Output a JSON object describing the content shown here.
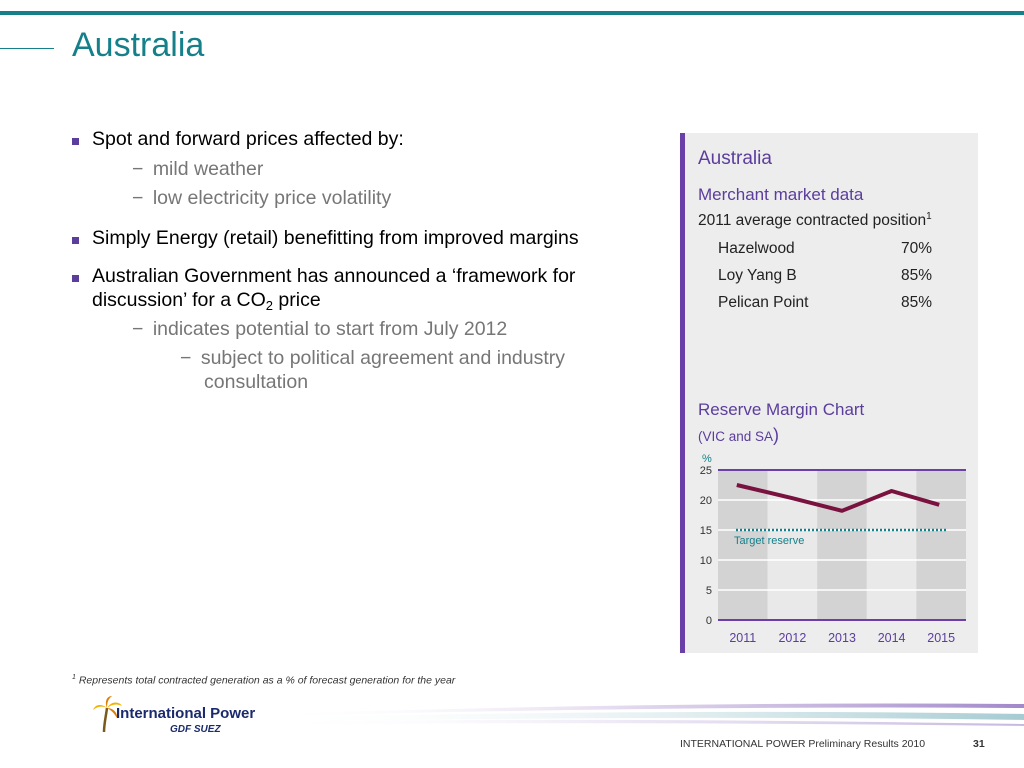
{
  "slide": {
    "title": "Australia"
  },
  "bullets": [
    {
      "text": "Spot and forward prices affected by:",
      "subs": [
        "mild weather",
        "low electricity price volatility"
      ]
    },
    {
      "text": "Simply Energy (retail) benefitting from improved margins"
    },
    {
      "text_a": "Australian Government has announced a ‘framework for",
      "text_b": "discussion’ for a CO",
      "text_sub": "2",
      "text_c": " price",
      "sub": "indicates potential to start from July 2012",
      "subsub": [
        "subject to political agreement and industry",
        "consultation"
      ]
    }
  ],
  "dash_glyph": "−",
  "panel": {
    "title": "Australia",
    "subtitle": "Merchant market data",
    "table_header": "2011 average contracted position",
    "table_header_sup": "1",
    "rows": [
      {
        "name": "Hazelwood",
        "value": "70%"
      },
      {
        "name": "Loy Yang B",
        "value": "85%"
      },
      {
        "name": "Pelican Point",
        "value": "85%"
      }
    ],
    "chart_title": "Reserve Margin Chart",
    "chart_subtitle": "(VIC and SA",
    "chart_subtitle_close": ")"
  },
  "chart_data": {
    "type": "line",
    "title": "Reserve Margin Chart",
    "subtitle": "(VIC and SA)",
    "ylabel": "%",
    "xlabel": "",
    "categories": [
      "2011",
      "2012",
      "2013",
      "2014",
      "2015"
    ],
    "x_tick_labels": [
      "2011",
      "2012",
      "2013",
      "2014",
      "2015"
    ],
    "y_ticks": [
      0,
      5,
      10,
      15,
      20,
      25
    ],
    "ylim": [
      0,
      25
    ],
    "series": [
      {
        "values": [
          22.5,
          20.3,
          18.2,
          21.5,
          19.2
        ],
        "color": "#7a1240"
      }
    ],
    "reference_line": {
      "label": "Target reserve",
      "value": 15,
      "color": "#15808a"
    },
    "grid": true,
    "legend": "none"
  },
  "footnote": {
    "sup": "1",
    "text": "Represents total contracted generation as a % of forecast generation for the year"
  },
  "logo": {
    "name": "International Power",
    "sub": "GDF SUEZ"
  },
  "footer": {
    "text": "INTERNATIONAL POWER Preliminary Results 2010",
    "page": "31"
  },
  "colors": {
    "teal": "#15808a",
    "purple": "#5b3d9c",
    "line": "#7a1240"
  }
}
